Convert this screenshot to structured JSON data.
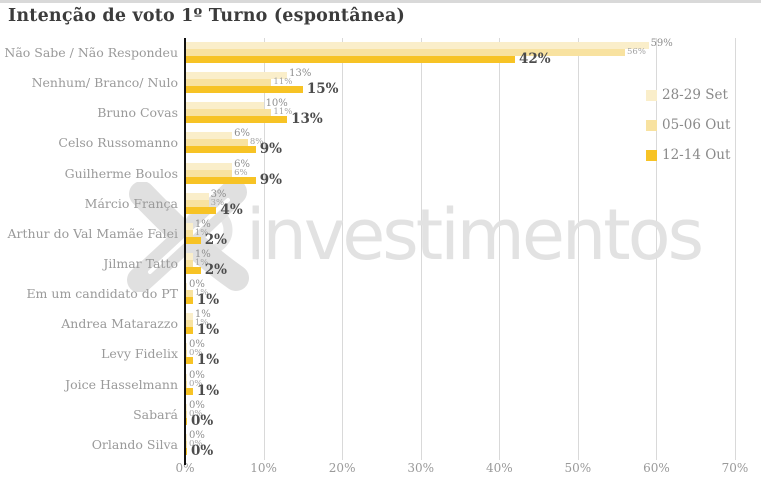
{
  "title": "Intenção de voto 1º Turno (espontânea)",
  "watermark": {
    "text": "investimentos"
  },
  "colors": {
    "series_light": "#FAEECA",
    "series_medium": "#F8E2A0",
    "series_gold": "#F7C325",
    "axis": "#111111",
    "grid": "#d9d9d9",
    "category_label": "#9a9a9a",
    "title_text": "#3c3c3c",
    "value_bold": "#4c4c4c",
    "value_small": "#8f8f8f",
    "watermark_gray": "#e2e2e2"
  },
  "chart_data": {
    "type": "bar",
    "orientation": "horizontal",
    "title": "Intenção de voto 1º Turno (espontânea)",
    "categories": [
      "Não Sabe / Não Respondeu",
      "Nenhum/ Branco/ Nulo",
      "Bruno Covas",
      "Celso Russomanno",
      "Guilherme Boulos",
      "Márcio França",
      "Arthur do Val Mamãe Falei",
      "Jilmar Tatto",
      "Em um candidato do PT",
      "Andrea Matarazzo",
      "Levy Fidelix",
      "Joice Hasselmann",
      "Sabará",
      "Orlando Silva"
    ],
    "series": [
      {
        "name": "28-29 Set",
        "color": "#FAEECA",
        "values": [
          59,
          13,
          10,
          6,
          6,
          3,
          1,
          1,
          0,
          1,
          0,
          0,
          0,
          0
        ]
      },
      {
        "name": "05-06 Out",
        "color": "#F8E2A0",
        "values": [
          56,
          11,
          11,
          8,
          6,
          3,
          1,
          1,
          1,
          1,
          0,
          0,
          0,
          0
        ]
      },
      {
        "name": "12-14 Out",
        "color": "#F7C325",
        "values": [
          42,
          15,
          13,
          9,
          9,
          4,
          2,
          2,
          1,
          1,
          1,
          1,
          0,
          0
        ]
      }
    ],
    "x_ticks": [
      "0%",
      "10%",
      "20%",
      "30%",
      "40%",
      "50%",
      "60%",
      "70%"
    ],
    "xlim": [
      0,
      70
    ],
    "value_suffix": "%",
    "grid": true,
    "legend_position": "right"
  }
}
